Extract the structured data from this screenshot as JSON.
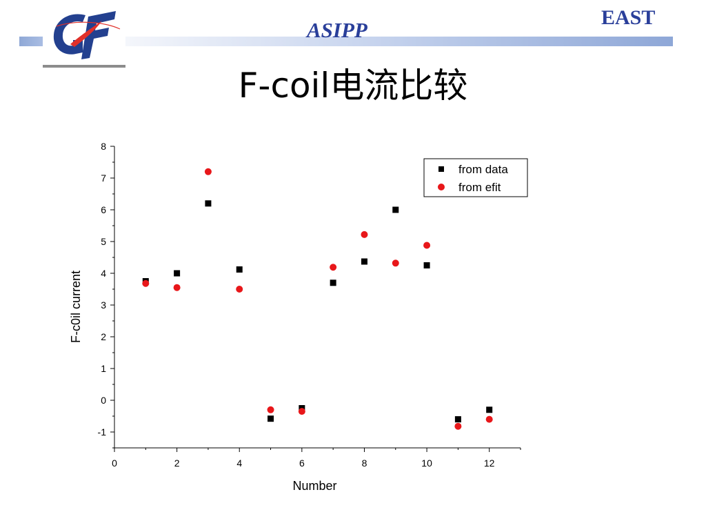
{
  "header": {
    "org": "ASIPP",
    "project": "EAST",
    "title": "F-coil电流比较",
    "brand_color": "#2a3f9a"
  },
  "logo": {
    "icon": "asipp-logo-icon",
    "primary_color": "#23408f",
    "accent_color": "#e0302a"
  },
  "chart_data": {
    "type": "scatter",
    "title": "",
    "xlabel": "Number",
    "ylabel": "F-c0il current",
    "xlim": [
      0,
      13
    ],
    "ylim": [
      -1.5,
      8
    ],
    "xticks": [
      0,
      2,
      4,
      6,
      8,
      10,
      12
    ],
    "yticks": [
      -1,
      0,
      1,
      2,
      3,
      4,
      5,
      6,
      7,
      8
    ],
    "grid": false,
    "legend_position": "top-right",
    "series": [
      {
        "name": "from data",
        "marker": "square",
        "color": "#000000",
        "x": [
          1,
          2,
          3,
          4,
          5,
          6,
          7,
          8,
          9,
          10,
          11,
          12
        ],
        "y": [
          3.75,
          4.0,
          6.2,
          4.12,
          -0.58,
          -0.25,
          3.7,
          4.37,
          6.0,
          4.25,
          -0.6,
          -0.3
        ]
      },
      {
        "name": "from efit",
        "marker": "circle",
        "color": "#e8171a",
        "x": [
          1,
          2,
          3,
          4,
          5,
          6,
          7,
          8,
          9,
          10,
          11,
          12
        ],
        "y": [
          3.68,
          3.55,
          7.2,
          3.5,
          -0.3,
          -0.35,
          4.19,
          5.22,
          4.32,
          4.88,
          -0.82,
          -0.6
        ]
      }
    ]
  }
}
